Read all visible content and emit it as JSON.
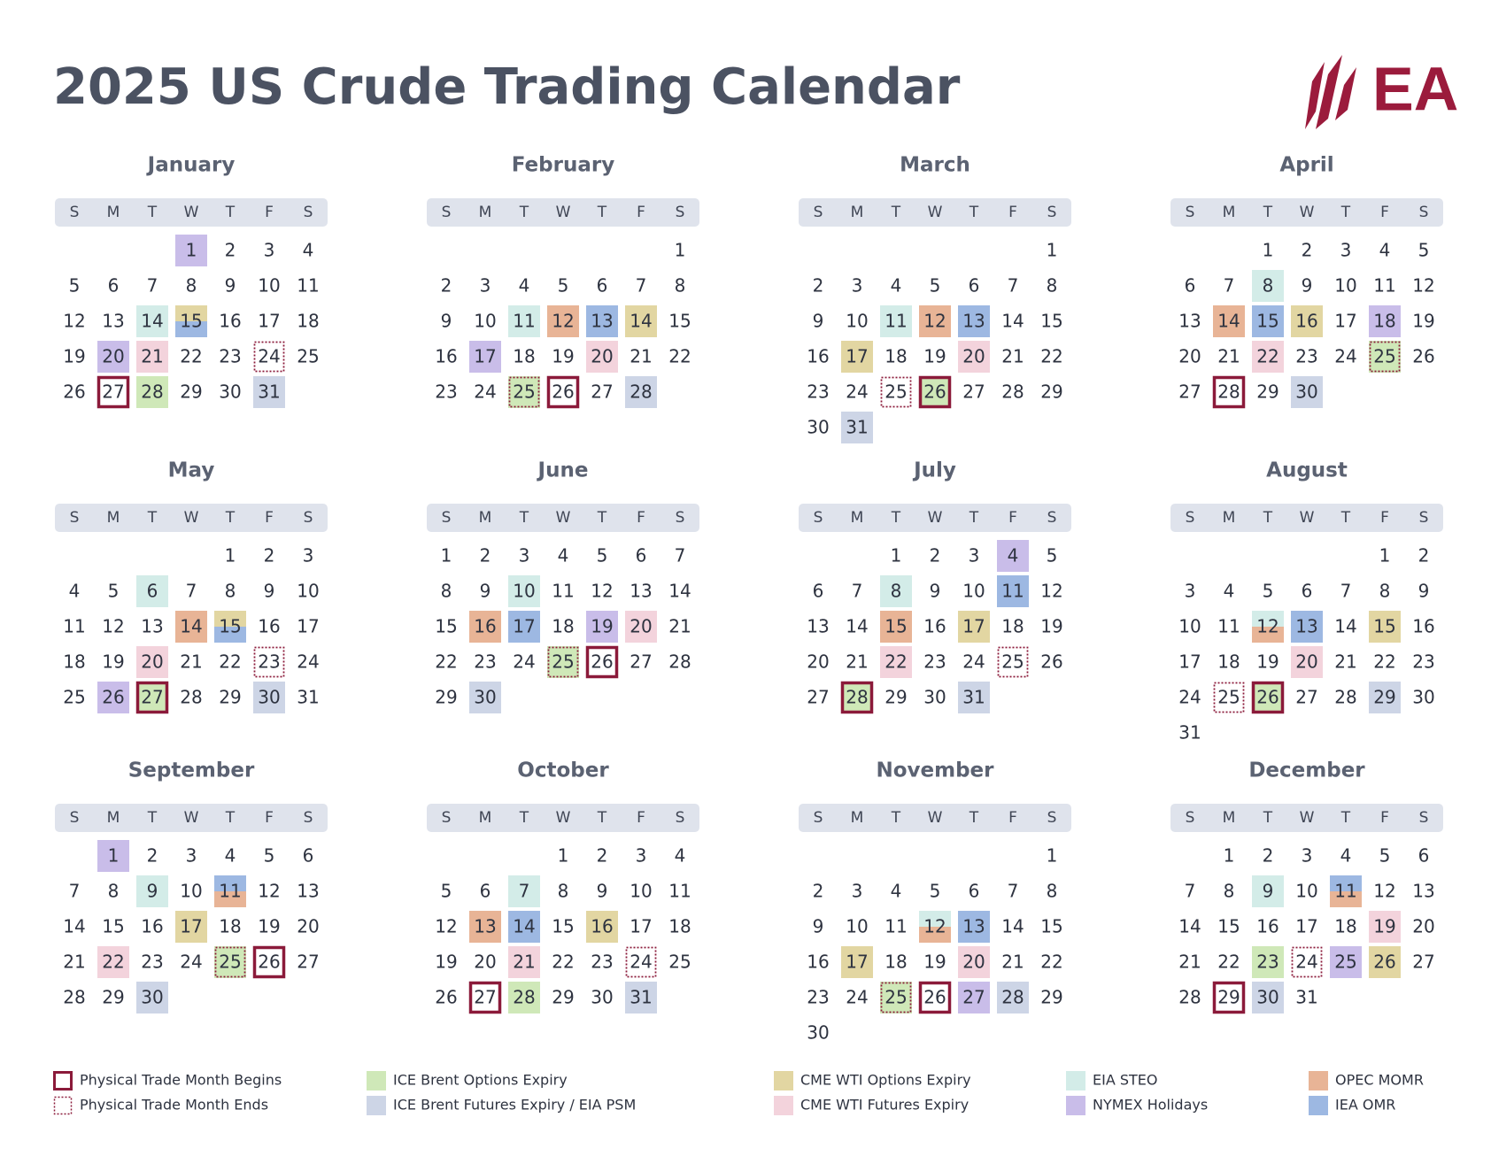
{
  "header": {
    "title": "2025 US Crude Trading Calendar",
    "logo": "EA"
  },
  "weekdays": [
    "S",
    "M",
    "T",
    "W",
    "T",
    "F",
    "S"
  ],
  "legend": [
    {
      "label": "Physical Trade Month Begins",
      "border": "solid",
      "color": "#8b1a3a"
    },
    {
      "label": "Physical Trade Month Ends",
      "border": "dotted",
      "color": "#8b1a3a"
    },
    {
      "label": "ICE Brent Options Expiry",
      "color": "#cfe8b8"
    },
    {
      "label": "ICE Brent Futures Expiry / EIA PSM",
      "color": "#cdd5e6"
    },
    {
      "label": "CME WTI Options Expiry",
      "color": "#e2d6a2"
    },
    {
      "label": "CME WTI Futures Expiry",
      "color": "#f3d3dc"
    },
    {
      "label": "EIA STEO",
      "color": "#d3ece8"
    },
    {
      "label": "NYMEX Holidays",
      "color": "#c9bde9"
    },
    {
      "label": "OPEC MOMR",
      "color": "#e8b496"
    },
    {
      "label": "IEA OMR",
      "color": "#9db8e2"
    }
  ],
  "months": [
    {
      "name": "January",
      "weeks": [
        [
          null,
          null,
          null,
          {
            "day": 1,
            "marks": [
              7
            ]
          },
          2,
          3,
          4
        ],
        [
          5,
          6,
          7,
          8,
          9,
          10,
          11
        ],
        [
          12,
          13,
          {
            "day": 14,
            "marks": [
              6
            ]
          },
          {
            "day": 15,
            "marks": [
              4,
              9
            ]
          },
          16,
          17,
          18
        ],
        [
          19,
          {
            "day": 20,
            "marks": [
              7
            ]
          },
          {
            "day": 21,
            "marks": [
              5
            ]
          },
          22,
          23,
          {
            "day": 24,
            "marks": [
              1
            ]
          },
          25
        ],
        [
          26,
          {
            "day": 27,
            "marks": [
              0
            ]
          },
          {
            "day": 28,
            "marks": [
              2
            ]
          },
          29,
          30,
          {
            "day": 31,
            "marks": [
              3
            ]
          },
          null
        ]
      ]
    },
    {
      "name": "February",
      "weeks": [
        [
          null,
          null,
          null,
          null,
          null,
          null,
          1
        ],
        [
          2,
          3,
          4,
          5,
          6,
          7,
          8
        ],
        [
          9,
          10,
          {
            "day": 11,
            "marks": [
              6
            ]
          },
          {
            "day": 12,
            "marks": [
              8
            ]
          },
          {
            "day": 13,
            "marks": [
              9
            ]
          },
          {
            "day": 14,
            "marks": [
              4
            ]
          },
          15
        ],
        [
          16,
          {
            "day": 17,
            "marks": [
              7
            ]
          },
          18,
          19,
          {
            "day": 20,
            "marks": [
              5
            ]
          },
          21,
          22
        ],
        [
          23,
          24,
          {
            "day": 25,
            "marks": [
              2,
              1
            ]
          },
          {
            "day": 26,
            "marks": [
              0
            ]
          },
          27,
          {
            "day": 28,
            "marks": [
              3
            ]
          },
          null
        ]
      ]
    },
    {
      "name": "March",
      "weeks": [
        [
          null,
          null,
          null,
          null,
          null,
          null,
          1
        ],
        [
          2,
          3,
          4,
          5,
          6,
          7,
          8
        ],
        [
          9,
          10,
          {
            "day": 11,
            "marks": [
              6
            ]
          },
          {
            "day": 12,
            "marks": [
              8
            ]
          },
          {
            "day": 13,
            "marks": [
              9
            ]
          },
          14,
          15
        ],
        [
          16,
          {
            "day": 17,
            "marks": [
              4
            ]
          },
          18,
          19,
          {
            "day": 20,
            "marks": [
              5
            ]
          },
          21,
          22
        ],
        [
          23,
          24,
          {
            "day": 25,
            "marks": [
              1
            ]
          },
          {
            "day": 26,
            "marks": [
              2,
              0
            ]
          },
          27,
          28,
          29
        ],
        [
          30,
          {
            "day": 31,
            "marks": [
              3
            ]
          },
          null,
          null,
          null,
          null,
          null
        ]
      ]
    },
    {
      "name": "April",
      "weeks": [
        [
          null,
          null,
          1,
          2,
          3,
          4,
          5
        ],
        [
          6,
          7,
          {
            "day": 8,
            "marks": [
              6
            ]
          },
          9,
          10,
          11,
          12
        ],
        [
          13,
          {
            "day": 14,
            "marks": [
              8
            ]
          },
          {
            "day": 15,
            "marks": [
              9
            ]
          },
          {
            "day": 16,
            "marks": [
              4
            ]
          },
          17,
          {
            "day": 18,
            "marks": [
              7
            ]
          },
          19
        ],
        [
          20,
          21,
          {
            "day": 22,
            "marks": [
              5
            ]
          },
          23,
          24,
          {
            "day": 25,
            "marks": [
              2,
              1
            ]
          },
          26
        ],
        [
          27,
          {
            "day": 28,
            "marks": [
              0
            ]
          },
          29,
          {
            "day": 30,
            "marks": [
              3
            ]
          },
          null,
          null,
          null
        ]
      ]
    },
    {
      "name": "May",
      "weeks": [
        [
          null,
          null,
          null,
          null,
          1,
          2,
          3
        ],
        [
          4,
          5,
          {
            "day": 6,
            "marks": [
              6
            ]
          },
          7,
          8,
          9,
          10
        ],
        [
          11,
          12,
          13,
          {
            "day": 14,
            "marks": [
              8
            ]
          },
          {
            "day": 15,
            "marks": [
              4,
              9
            ]
          },
          16,
          17
        ],
        [
          18,
          19,
          {
            "day": 20,
            "marks": [
              5
            ]
          },
          21,
          22,
          {
            "day": 23,
            "marks": [
              1
            ]
          },
          24
        ],
        [
          25,
          {
            "day": 26,
            "marks": [
              7
            ]
          },
          {
            "day": 27,
            "marks": [
              2,
              0
            ]
          },
          28,
          29,
          {
            "day": 30,
            "marks": [
              3
            ]
          },
          31
        ]
      ]
    },
    {
      "name": "June",
      "weeks": [
        [
          1,
          2,
          3,
          4,
          5,
          6,
          7
        ],
        [
          8,
          9,
          {
            "day": 10,
            "marks": [
              6
            ]
          },
          11,
          12,
          13,
          14
        ],
        [
          15,
          {
            "day": 16,
            "marks": [
              8
            ]
          },
          {
            "day": 17,
            "marks": [
              9
            ]
          },
          18,
          {
            "day": 19,
            "marks": [
              7
            ]
          },
          {
            "day": 20,
            "marks": [
              5
            ]
          },
          21
        ],
        [
          22,
          23,
          24,
          {
            "day": 25,
            "marks": [
              2,
              1
            ]
          },
          {
            "day": 26,
            "marks": [
              0
            ]
          },
          27,
          28
        ],
        [
          29,
          {
            "day": 30,
            "marks": [
              3
            ]
          },
          null,
          null,
          null,
          null,
          null
        ]
      ]
    },
    {
      "name": "July",
      "weeks": [
        [
          null,
          null,
          1,
          2,
          3,
          {
            "day": 4,
            "marks": [
              7
            ]
          },
          5
        ],
        [
          6,
          7,
          {
            "day": 8,
            "marks": [
              6
            ]
          },
          9,
          10,
          {
            "day": 11,
            "marks": [
              9
            ]
          },
          12
        ],
        [
          13,
          14,
          {
            "day": 15,
            "marks": [
              8
            ]
          },
          16,
          {
            "day": 17,
            "marks": [
              4
            ]
          },
          18,
          19
        ],
        [
          20,
          21,
          {
            "day": 22,
            "marks": [
              5
            ]
          },
          23,
          24,
          {
            "day": 25,
            "marks": [
              1
            ]
          },
          26
        ],
        [
          27,
          {
            "day": 28,
            "marks": [
              2,
              0
            ]
          },
          29,
          30,
          {
            "day": 31,
            "marks": [
              3
            ]
          },
          null,
          null
        ]
      ]
    },
    {
      "name": "August",
      "weeks": [
        [
          null,
          null,
          null,
          null,
          null,
          1,
          2
        ],
        [
          3,
          4,
          5,
          6,
          7,
          8,
          9
        ],
        [
          10,
          11,
          {
            "day": 12,
            "marks": [
              6,
              8
            ]
          },
          {
            "day": 13,
            "marks": [
              9
            ]
          },
          14,
          {
            "day": 15,
            "marks": [
              4
            ]
          },
          16
        ],
        [
          17,
          18,
          19,
          {
            "day": 20,
            "marks": [
              5
            ]
          },
          21,
          22,
          23
        ],
        [
          24,
          {
            "day": 25,
            "marks": [
              1
            ]
          },
          {
            "day": 26,
            "marks": [
              2,
              0
            ]
          },
          27,
          28,
          {
            "day": 29,
            "marks": [
              3
            ]
          },
          30
        ],
        [
          31,
          null,
          null,
          null,
          null,
          null,
          null
        ]
      ]
    },
    {
      "name": "September",
      "weeks": [
        [
          null,
          {
            "day": 1,
            "marks": [
              7
            ]
          },
          2,
          3,
          4,
          5,
          6
        ],
        [
          7,
          8,
          {
            "day": 9,
            "marks": [
              6
            ]
          },
          10,
          {
            "day": 11,
            "marks": [
              9,
              8
            ]
          },
          12,
          13
        ],
        [
          14,
          15,
          16,
          {
            "day": 17,
            "marks": [
              4
            ]
          },
          18,
          19,
          20
        ],
        [
          21,
          {
            "day": 22,
            "marks": [
              5
            ]
          },
          23,
          24,
          {
            "day": 25,
            "marks": [
              2,
              1
            ]
          },
          {
            "day": 26,
            "marks": [
              0
            ]
          },
          27
        ],
        [
          28,
          29,
          {
            "day": 30,
            "marks": [
              3
            ]
          },
          null,
          null,
          null,
          null
        ]
      ]
    },
    {
      "name": "October",
      "weeks": [
        [
          null,
          null,
          null,
          1,
          2,
          3,
          4
        ],
        [
          5,
          6,
          {
            "day": 7,
            "marks": [
              6
            ]
          },
          8,
          9,
          10,
          11
        ],
        [
          12,
          {
            "day": 13,
            "marks": [
              8
            ]
          },
          {
            "day": 14,
            "marks": [
              9
            ]
          },
          15,
          {
            "day": 16,
            "marks": [
              4
            ]
          },
          17,
          18
        ],
        [
          19,
          20,
          {
            "day": 21,
            "marks": [
              5
            ]
          },
          22,
          23,
          {
            "day": 24,
            "marks": [
              1
            ]
          },
          25
        ],
        [
          26,
          {
            "day": 27,
            "marks": [
              0
            ]
          },
          {
            "day": 28,
            "marks": [
              2
            ]
          },
          29,
          30,
          {
            "day": 31,
            "marks": [
              3
            ]
          },
          null
        ]
      ]
    },
    {
      "name": "November",
      "weeks": [
        [
          null,
          null,
          null,
          null,
          null,
          null,
          1
        ],
        [
          2,
          3,
          4,
          5,
          6,
          7,
          8
        ],
        [
          9,
          10,
          11,
          {
            "day": 12,
            "marks": [
              6,
              8
            ]
          },
          {
            "day": 13,
            "marks": [
              9
            ]
          },
          14,
          15
        ],
        [
          16,
          {
            "day": 17,
            "marks": [
              4
            ]
          },
          18,
          19,
          {
            "day": 20,
            "marks": [
              5
            ]
          },
          21,
          22
        ],
        [
          23,
          24,
          {
            "day": 25,
            "marks": [
              2,
              1
            ]
          },
          {
            "day": 26,
            "marks": [
              0
            ]
          },
          {
            "day": 27,
            "marks": [
              7
            ]
          },
          {
            "day": 28,
            "marks": [
              3
            ]
          },
          29
        ],
        [
          30,
          null,
          null,
          null,
          null,
          null,
          null
        ]
      ]
    },
    {
      "name": "December",
      "weeks": [
        [
          null,
          1,
          2,
          3,
          4,
          5,
          6
        ],
        [
          7,
          8,
          {
            "day": 9,
            "marks": [
              6
            ]
          },
          10,
          {
            "day": 11,
            "marks": [
              9,
              8
            ]
          },
          12,
          13
        ],
        [
          14,
          15,
          16,
          17,
          18,
          {
            "day": 19,
            "marks": [
              5
            ]
          },
          20
        ],
        [
          21,
          22,
          {
            "day": 23,
            "marks": [
              2
            ]
          },
          {
            "day": 24,
            "marks": [
              1
            ]
          },
          {
            "day": 25,
            "marks": [
              7
            ]
          },
          {
            "day": 26,
            "marks": [
              4
            ]
          },
          27
        ],
        [
          28,
          {
            "day": 29,
            "marks": [
              0
            ]
          },
          {
            "day": 30,
            "marks": [
              3
            ]
          },
          31,
          null,
          null,
          null
        ]
      ]
    }
  ]
}
